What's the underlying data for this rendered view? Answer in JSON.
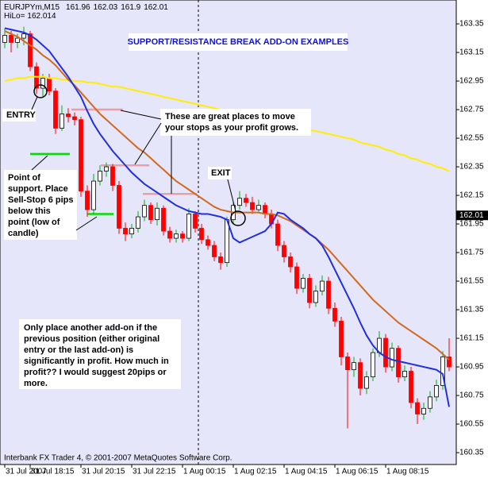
{
  "chart_data": {
    "type": "candlestick",
    "title": "SUPPORT/RESISTANCE BREAK ADD-ON EXAMPLES",
    "symbol": "EURJPYm,M15",
    "header_values": [
      161.96,
      162.03,
      161.9,
      162.01
    ],
    "hilo_label": "HiLo=",
    "hilo": 162.014,
    "current_price": 162.01,
    "footer": "Interbank FX Trader 4, © 2001-2007 MetaQuotes Software Corp.",
    "categories": [
      "31 Jul 2007",
      null,
      null,
      null,
      "31 Jul 18:15",
      null,
      null,
      null,
      null,
      null,
      null,
      null,
      "31 Jul 20:15",
      null,
      null,
      null,
      null,
      null,
      null,
      null,
      "31 Jul 22:15",
      null,
      null,
      null,
      null,
      null,
      null,
      null,
      "1 Aug 00:15",
      null,
      null,
      null,
      null,
      null,
      null,
      null,
      "1 Aug 02:15",
      null,
      null,
      null,
      null,
      null,
      null,
      null,
      "1 Aug 04:15",
      null,
      null,
      null,
      null,
      null,
      null,
      null,
      "1 Aug 06:15",
      null,
      null,
      null,
      null,
      null,
      null,
      null,
      "1 Aug 08:15",
      null,
      null,
      null,
      null,
      null,
      null,
      null,
      null,
      null,
      null
    ],
    "open": [
      163.22,
      163.27,
      163.22,
      163.25,
      163.28,
      163.05,
      162.9,
      162.97,
      162.88,
      162.62,
      162.72,
      162.7,
      162.68,
      162.18,
      162.05,
      162.25,
      162.32,
      162.35,
      162.22,
      161.92,
      161.88,
      161.92,
      162.0,
      162.08,
      161.98,
      162.06,
      161.9,
      161.85,
      161.88,
      161.85,
      162.02,
      161.92,
      161.84,
      161.8,
      161.72,
      161.68,
      161.98,
      162.08,
      162.13,
      162.1,
      162.05,
      162.08,
      162.02,
      161.95,
      161.8,
      161.72,
      161.65,
      161.5,
      161.57,
      161.4,
      161.48,
      161.55,
      161.36,
      161.27,
      161.02,
      160.93,
      160.98,
      160.8,
      160.88,
      161.05,
      161.15,
      160.95,
      161.08,
      160.88,
      160.92,
      160.7,
      160.62,
      160.66,
      160.74,
      160.82,
      161.02
    ],
    "high": [
      163.32,
      163.3,
      163.28,
      163.33,
      163.3,
      163.08,
      163.0,
      163.0,
      162.9,
      162.78,
      162.76,
      162.73,
      162.7,
      162.22,
      162.3,
      162.36,
      162.38,
      162.37,
      162.25,
      161.96,
      161.95,
      162.04,
      162.12,
      162.1,
      162.1,
      162.08,
      161.93,
      161.91,
      161.9,
      162.06,
      162.04,
      161.95,
      161.87,
      161.83,
      161.75,
      162.0,
      162.11,
      162.18,
      162.16,
      162.14,
      162.12,
      162.1,
      162.05,
      161.98,
      161.83,
      161.75,
      161.68,
      161.6,
      161.6,
      161.52,
      161.59,
      161.58,
      161.4,
      161.3,
      161.05,
      161.02,
      161.01,
      160.92,
      161.08,
      161.2,
      161.18,
      161.12,
      161.1,
      160.96,
      160.95,
      160.73,
      160.7,
      160.78,
      160.86,
      161.06,
      161.15
    ],
    "low": [
      163.18,
      163.15,
      163.18,
      163.2,
      163.02,
      162.86,
      162.84,
      162.85,
      162.58,
      162.6,
      162.66,
      162.64,
      162.14,
      162.0,
      162.02,
      162.22,
      162.28,
      162.18,
      161.88,
      161.83,
      161.85,
      161.89,
      161.97,
      161.95,
      161.94,
      161.87,
      161.82,
      161.82,
      161.82,
      161.83,
      161.89,
      161.81,
      161.77,
      161.69,
      161.63,
      161.65,
      161.95,
      162.05,
      162.07,
      162.02,
      162.03,
      161.99,
      161.92,
      161.76,
      161.68,
      161.61,
      161.46,
      161.47,
      161.36,
      161.37,
      161.45,
      161.32,
      161.23,
      160.96,
      160.52,
      160.88,
      160.75,
      160.76,
      160.85,
      161.02,
      160.91,
      160.92,
      160.84,
      160.85,
      160.66,
      160.55,
      160.58,
      160.63,
      160.71,
      160.79,
      160.92
    ],
    "close": [
      163.27,
      163.22,
      163.25,
      163.28,
      163.05,
      162.9,
      162.97,
      162.88,
      162.62,
      162.72,
      162.7,
      162.68,
      162.18,
      162.05,
      162.25,
      162.32,
      162.35,
      162.22,
      161.92,
      161.88,
      161.92,
      162.0,
      162.08,
      161.98,
      162.06,
      161.9,
      161.85,
      161.88,
      161.85,
      162.02,
      161.92,
      161.84,
      161.8,
      161.72,
      161.68,
      161.98,
      162.08,
      162.13,
      162.1,
      162.05,
      162.08,
      162.02,
      161.95,
      161.8,
      161.72,
      161.65,
      161.5,
      161.57,
      161.4,
      161.48,
      161.55,
      161.36,
      161.27,
      161.02,
      160.93,
      160.98,
      160.8,
      160.88,
      161.05,
      161.15,
      160.95,
      161.08,
      160.88,
      160.92,
      160.7,
      160.62,
      160.66,
      160.74,
      160.82,
      161.02,
      160.95
    ],
    "up_color": "#ffffff",
    "down_color": "#ff0000",
    "series": [
      {
        "color": "#ffee00",
        "values": [
          162.95,
          162.96,
          162.97,
          162.97,
          162.98,
          162.98,
          162.98,
          162.97,
          162.97,
          162.96,
          162.96,
          162.95,
          162.95,
          162.94,
          162.94,
          162.93,
          162.92,
          162.91,
          162.91,
          162.9,
          162.89,
          162.88,
          162.87,
          162.86,
          162.85,
          162.84,
          162.83,
          162.82,
          162.81,
          162.8,
          162.79,
          162.78,
          162.77,
          162.76,
          162.75,
          162.74,
          162.73,
          162.72,
          162.71,
          162.7,
          162.69,
          162.68,
          162.67,
          162.66,
          162.65,
          162.64,
          162.63,
          162.62,
          162.61,
          162.6,
          162.59,
          162.58,
          162.57,
          162.56,
          162.55,
          162.54,
          162.52,
          162.51,
          162.5,
          162.49,
          162.47,
          162.46,
          162.44,
          162.43,
          162.41,
          162.4,
          162.38,
          162.37,
          162.35,
          162.34,
          162.32
        ]
      },
      {
        "color": "#d2691e",
        "values": [
          163.3,
          163.28,
          163.26,
          163.23,
          163.2,
          163.17,
          163.13,
          163.1,
          163.06,
          163.01,
          162.96,
          162.92,
          162.87,
          162.82,
          162.77,
          162.72,
          162.68,
          162.64,
          162.6,
          162.56,
          162.52,
          162.48,
          162.45,
          162.41,
          162.37,
          162.33,
          162.29,
          162.25,
          162.22,
          162.19,
          162.16,
          162.13,
          162.1,
          162.07,
          162.05,
          162.04,
          162.03,
          162.03,
          162.03,
          162.03,
          162.03,
          162.02,
          162.02,
          162.01,
          161.99,
          161.97,
          161.94,
          161.91,
          161.88,
          161.85,
          161.81,
          161.77,
          161.72,
          161.67,
          161.62,
          161.57,
          161.52,
          161.47,
          161.42,
          161.38,
          161.34,
          161.3,
          161.26,
          161.23,
          161.2,
          161.17,
          161.14,
          161.11,
          161.08,
          161.04,
          161.0
        ]
      },
      {
        "color": "#1f2fe0",
        "values": [
          163.32,
          163.31,
          163.3,
          163.29,
          163.27,
          163.24,
          163.2,
          163.16,
          163.1,
          163.04,
          162.98,
          162.91,
          162.84,
          162.74,
          162.65,
          162.58,
          162.52,
          162.46,
          162.41,
          162.36,
          162.31,
          162.27,
          162.23,
          162.2,
          162.17,
          162.14,
          162.11,
          162.08,
          162.06,
          162.04,
          162.03,
          162.02,
          162.02,
          162.01,
          162.0,
          161.98,
          161.85,
          161.82,
          161.84,
          161.86,
          161.88,
          161.9,
          161.95,
          162.03,
          162.02,
          161.98,
          161.95,
          161.92,
          161.88,
          161.85,
          161.8,
          161.72,
          161.63,
          161.54,
          161.45,
          161.36,
          161.26,
          161.17,
          161.1,
          161.05,
          161.02,
          161.0,
          160.99,
          160.98,
          160.97,
          160.96,
          160.95,
          160.94,
          160.93,
          160.9,
          160.67
        ]
      }
    ],
    "levels": [
      {
        "value": 162.44,
        "color": "#00dd00"
      },
      {
        "value": 162.02,
        "color": "#00dd00"
      },
      {
        "value": 162.75,
        "color": "#e8a0a8"
      },
      {
        "value": 162.36,
        "color": "#e8a0a8"
      },
      {
        "value": 162.16,
        "color": "#e8a0a8"
      }
    ],
    "ylim": [
      160.267,
      163.517
    ],
    "yticks": [
      {
        "value": 163.35,
        "label": "163.35"
      },
      {
        "value": 163.15,
        "label": "163.15"
      },
      {
        "value": 162.95,
        "label": "162.95"
      },
      {
        "value": 162.75,
        "label": "162.75"
      },
      {
        "value": 162.55,
        "label": "162.55"
      },
      {
        "value": 162.35,
        "label": "162.35"
      },
      {
        "value": 162.15,
        "label": "162.15"
      },
      {
        "value": 161.95,
        "label": "161.95"
      },
      {
        "value": 161.75,
        "label": "161.75"
      },
      {
        "value": 161.55,
        "label": "161.55"
      },
      {
        "value": 161.35,
        "label": "161.35"
      },
      {
        "value": 161.15,
        "label": "161.15"
      },
      {
        "value": 160.95,
        "label": "160.95"
      },
      {
        "value": 160.75,
        "label": "160.75"
      },
      {
        "value": 160.55,
        "label": "160.55"
      },
      {
        "value": 160.35,
        "label": "160.35"
      }
    ],
    "annotations": {
      "entry": "ENTRY",
      "exit": "EXIT",
      "stops_note": [
        "These are great places to move",
        "your stops as your profit grows."
      ],
      "support_note": [
        "Point of",
        "support. Place",
        "Sell-Stop 6 pips",
        "below this",
        "point (low of",
        "candle)"
      ],
      "addon_note": [
        "Only place another add-on if the",
        "previous position (either original",
        "entry or the last add-on) is",
        "significantly in profit. How much in",
        "profit?? I would suggest 20pips or",
        "more."
      ]
    }
  }
}
